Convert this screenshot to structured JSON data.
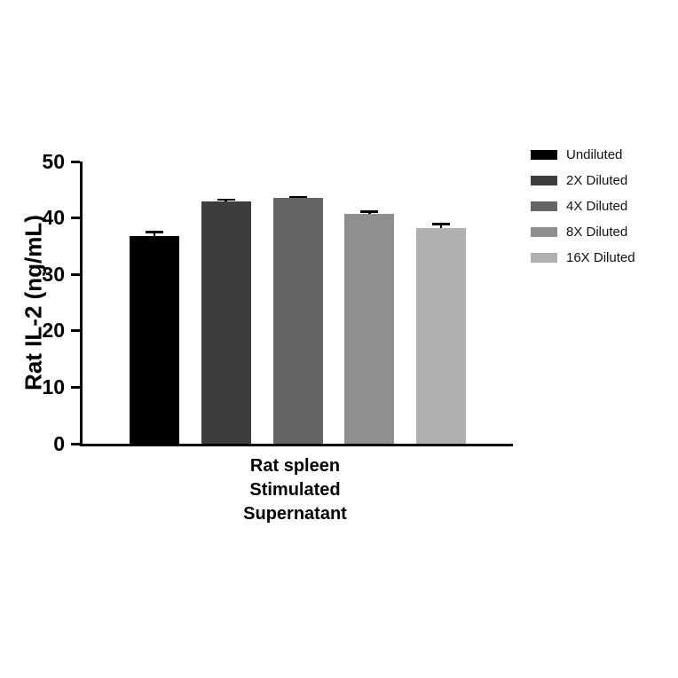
{
  "chart_data": {
    "type": "bar",
    "title": "",
    "ylabel": "Rat IL-2 (ng/mL)",
    "xlabel_lines": [
      "Rat spleen",
      "Stimulated",
      "Supernatant"
    ],
    "ylim": [
      0,
      50
    ],
    "yticks": [
      0,
      10,
      20,
      30,
      40,
      50
    ],
    "grid": false,
    "legend_position": "right",
    "categories": [
      "Undiluted",
      "2X Diluted",
      "4X Diluted",
      "8X Diluted",
      "16X Diluted"
    ],
    "values": [
      36.8,
      43.0,
      43.5,
      40.8,
      38.2
    ],
    "errors": [
      0.9,
      0.4,
      0.4,
      0.5,
      0.9
    ],
    "colors": [
      "#000000",
      "#3d3d3d",
      "#656565",
      "#8f8f8f",
      "#b0b0b0"
    ]
  }
}
